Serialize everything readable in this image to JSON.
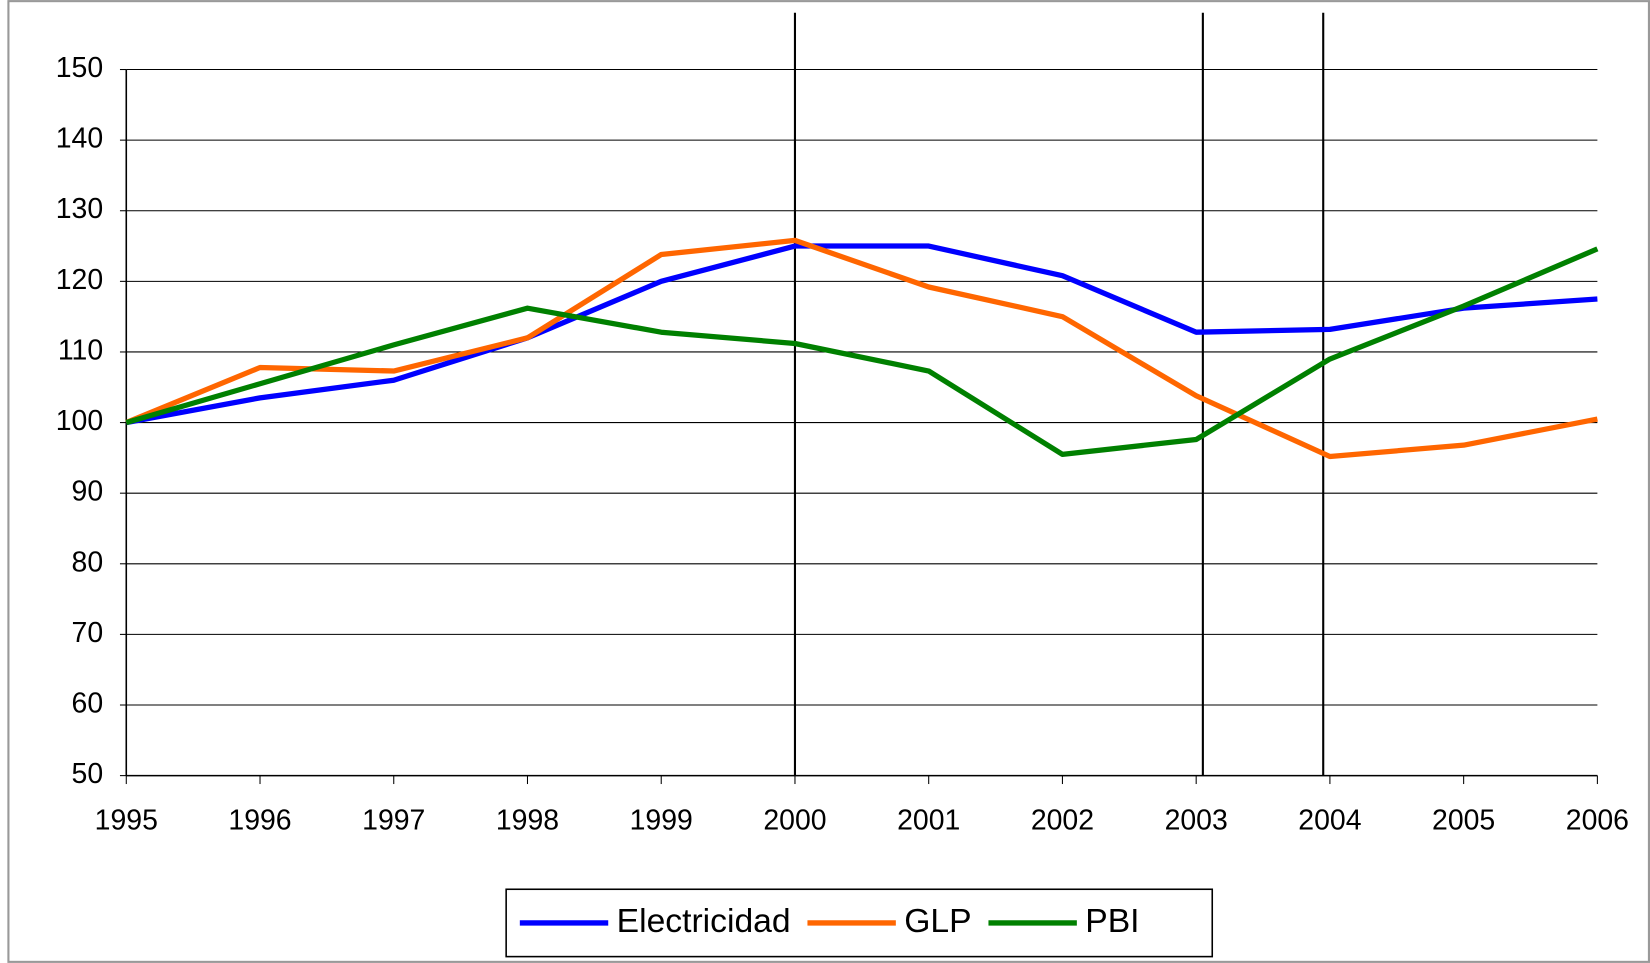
{
  "chart_data": {
    "type": "line",
    "x": [
      1995,
      1996,
      1997,
      1998,
      1999,
      2000,
      2001,
      2002,
      2003,
      2004,
      2005,
      2006
    ],
    "xlim": [
      1995,
      2006
    ],
    "xticks": [
      1995,
      1996,
      1997,
      1998,
      1999,
      2000,
      2001,
      2002,
      2003,
      2004,
      2005,
      2006
    ],
    "ylim": [
      50,
      150
    ],
    "yticks": [
      50,
      60,
      70,
      80,
      90,
      100,
      110,
      120,
      130,
      140,
      150
    ],
    "grid": true,
    "legend": "bottom",
    "vlines": [
      2000,
      2003.05,
      2003.95
    ],
    "series": [
      {
        "name": "Electricidad",
        "color": "#0000ff",
        "values": [
          100,
          103.5,
          106,
          112,
          120,
          125,
          125,
          120.8,
          112.8,
          113.2,
          116.2,
          117.5
        ]
      },
      {
        "name": "GLP",
        "color": "#ff6600",
        "values": [
          100,
          107.8,
          107.3,
          112,
          123.8,
          125.8,
          119.2,
          115,
          103.8,
          95.2,
          96.8,
          100.5
        ]
      },
      {
        "name": "PBI",
        "color": "#008000",
        "values": [
          100,
          105.5,
          111,
          116.2,
          112.8,
          111.2,
          107.3,
          95.5,
          97.6,
          109,
          116.5,
          124.6
        ]
      }
    ]
  }
}
